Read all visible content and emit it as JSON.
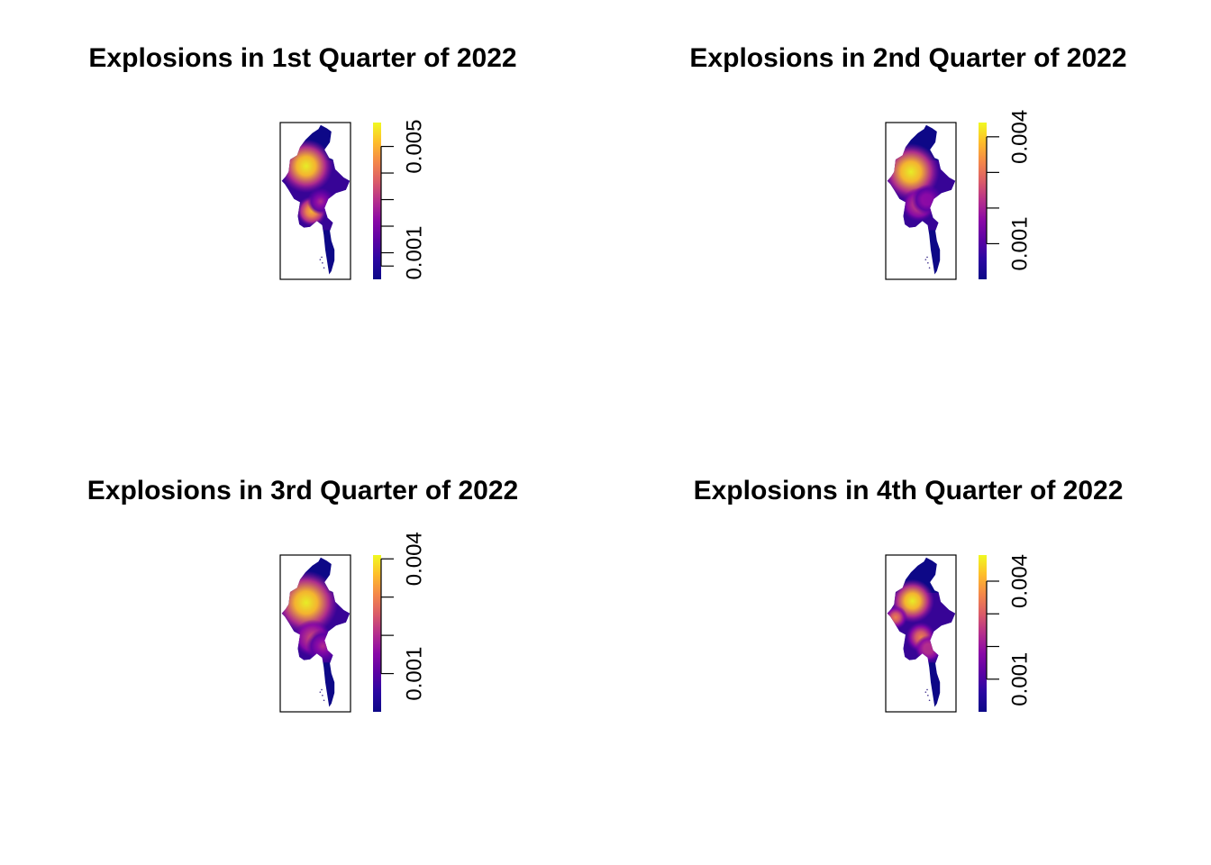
{
  "colors": {
    "scale": [
      "#0d0887",
      "#2a07a1",
      "#5b02a3",
      "#8a09a6",
      "#b52f8c",
      "#db5c68",
      "#f48849",
      "#febd2a",
      "#f0f921"
    ]
  },
  "chart_data": [
    {
      "type": "heatmap",
      "title": "Explosions in 1st Quarter of 2022",
      "legend": {
        "range": [
          0,
          0.0059
        ],
        "ticks": [
          0.0005,
          0.001,
          0.002,
          0.003,
          0.004,
          0.005
        ],
        "tick_labels": [
          "0.001",
          "0.005"
        ],
        "labeled_ticks": [
          0.001,
          0.005
        ]
      },
      "hotspots": [
        {
          "lon": 95.4,
          "lat": 23.3,
          "intensity": 1.0,
          "spread": 1.6
        },
        {
          "lon": 96.1,
          "lat": 17.8,
          "intensity": 0.85,
          "spread": 0.9
        },
        {
          "lon": 97.3,
          "lat": 19.0,
          "intensity": 0.5,
          "spread": 0.8
        }
      ]
    },
    {
      "type": "heatmap",
      "title": "Explosions in 2nd Quarter of 2022",
      "legend": {
        "range": [
          0,
          0.0044
        ],
        "ticks": [
          0.001,
          0.002,
          0.003,
          0.004
        ],
        "tick_labels": [
          "0.001",
          "0.004"
        ],
        "labeled_ticks": [
          0.001,
          0.004
        ]
      },
      "hotspots": [
        {
          "lon": 95.3,
          "lat": 22.6,
          "intensity": 1.0,
          "spread": 1.7
        },
        {
          "lon": 96.3,
          "lat": 18.6,
          "intensity": 0.55,
          "spread": 1.0
        },
        {
          "lon": 97.4,
          "lat": 19.2,
          "intensity": 0.4,
          "spread": 0.9
        }
      ]
    },
    {
      "type": "heatmap",
      "title": "Explosions in 3rd Quarter of 2022",
      "legend": {
        "range": [
          0,
          0.0041
        ],
        "ticks": [
          0.001,
          0.002,
          0.003,
          0.004
        ],
        "tick_labels": [
          "0.001",
          "0.004"
        ],
        "labeled_ticks": [
          0.001,
          0.004
        ]
      },
      "hotspots": [
        {
          "lon": 95.4,
          "lat": 22.8,
          "intensity": 1.0,
          "spread": 1.9
        },
        {
          "lon": 96.2,
          "lat": 18.5,
          "intensity": 0.6,
          "spread": 1.1
        },
        {
          "lon": 97.6,
          "lat": 17.5,
          "intensity": 0.45,
          "spread": 1.0
        }
      ]
    },
    {
      "type": "heatmap",
      "title": "Explosions in 4th Quarter of 2022",
      "legend": {
        "range": [
          0,
          0.0048
        ],
        "ticks": [
          0.001,
          0.002,
          0.003,
          0.004
        ],
        "tick_labels": [
          "0.001",
          "0.004"
        ],
        "labeled_ticks": [
          0.001,
          0.004
        ]
      },
      "hotspots": [
        {
          "lon": 95.5,
          "lat": 23.0,
          "intensity": 1.0,
          "spread": 1.3
        },
        {
          "lon": 93.3,
          "lat": 21.0,
          "intensity": 0.7,
          "spread": 0.7
        },
        {
          "lon": 96.6,
          "lat": 18.6,
          "intensity": 0.7,
          "spread": 0.9
        },
        {
          "lon": 97.6,
          "lat": 17.2,
          "intensity": 0.55,
          "spread": 0.8
        }
      ]
    }
  ]
}
